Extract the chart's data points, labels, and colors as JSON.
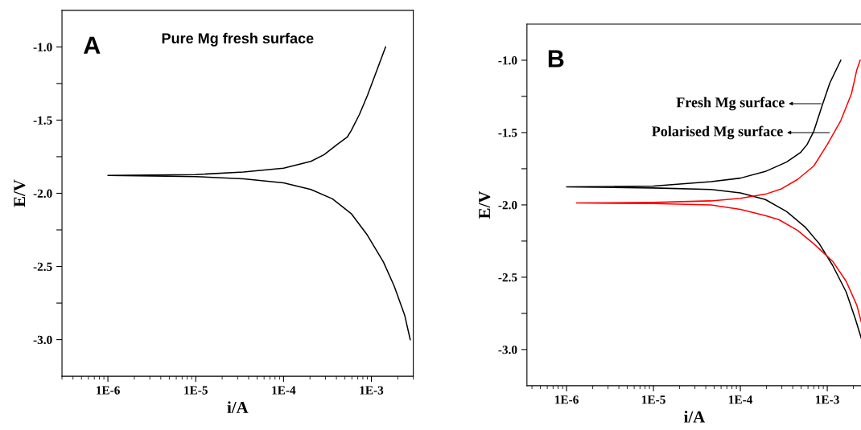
{
  "chart_data": [
    {
      "type": "line",
      "title": "A",
      "xlabel": "i/A",
      "ylabel": "E/V",
      "log": "x",
      "grid": false,
      "legend": false,
      "xlim": [
        3e-07,
        0.003
      ],
      "xticks": [
        {
          "value": 1e-06,
          "label": "1E-6"
        },
        {
          "value": 1e-05,
          "label": "1E-5"
        },
        {
          "value": 0.0001,
          "label": "1E-4"
        },
        {
          "value": 0.001,
          "label": "1E-3"
        }
      ],
      "ylim": [
        -3.25,
        -0.75
      ],
      "yticks": [
        {
          "value": -3.0,
          "label": "-3.0"
        },
        {
          "value": -2.75,
          "label": null
        },
        {
          "value": -2.5,
          "label": "-2.5"
        },
        {
          "value": -2.25,
          "label": null
        },
        {
          "value": -2.0,
          "label": "-2.0"
        },
        {
          "value": -1.75,
          "label": null
        },
        {
          "value": -1.5,
          "label": "-1.5"
        },
        {
          "value": -1.25,
          "label": null
        },
        {
          "value": -1.0,
          "label": "-1.0"
        }
      ],
      "annotations": [
        "Pure Mg fresh surface"
      ],
      "series": [
        {
          "color": "#000000",
          "x": [
            0.00145,
            0.00111,
            0.0009,
            0.00073,
            0.00059,
            0.00053,
            0.000415,
            0.00029,
            0.000205,
            0.0001,
            3.5e-05,
            1e-05,
            1e-06,
            1e-05,
            3.5e-05,
            0.0001,
            0.000205,
            0.00036,
            0.00059,
            0.0009,
            0.00137,
            0.00182,
            0.0024,
            0.00277
          ],
          "values": [
            -1.0,
            -1.187,
            -1.333,
            -1.462,
            -1.571,
            -1.617,
            -1.663,
            -1.736,
            -1.782,
            -1.828,
            -1.855,
            -1.872,
            -1.878,
            -1.886,
            -1.901,
            -1.929,
            -1.974,
            -2.038,
            -2.139,
            -2.286,
            -2.469,
            -2.634,
            -2.835,
            -3.0
          ]
        }
      ]
    },
    {
      "type": "line",
      "title": "B",
      "xlabel": "i/A",
      "ylabel": "E/V",
      "log": "x",
      "grid": false,
      "legend": false,
      "xlim": [
        3.5e-07,
        0.0025
      ],
      "xticks": [
        {
          "value": 1e-06,
          "label": "1E-6"
        },
        {
          "value": 1e-05,
          "label": "1E-5"
        },
        {
          "value": 0.0001,
          "label": "1E-4"
        },
        {
          "value": 0.001,
          "label": "1E-3"
        }
      ],
      "ylim": [
        -3.25,
        -0.75
      ],
      "yticks": [
        {
          "value": -3.0,
          "label": "-3.0"
        },
        {
          "value": -2.75,
          "label": null
        },
        {
          "value": -2.5,
          "label": "-2.5"
        },
        {
          "value": -2.25,
          "label": null
        },
        {
          "value": -2.0,
          "label": "-2.0"
        },
        {
          "value": -1.75,
          "label": null
        },
        {
          "value": -1.5,
          "label": "-1.5"
        },
        {
          "value": -1.25,
          "label": null
        },
        {
          "value": -1.0,
          "label": "-1.0"
        }
      ],
      "annotations": [
        "Fresh Mg surface",
        "Polarised Mg surface"
      ],
      "series": [
        {
          "color": "#000000",
          "x": [
            0.00143,
            0.00107,
            0.00087,
            0.0007,
            0.000585,
            0.00049,
            0.00034,
            0.000194,
            0.0001,
            4.6e-05,
            1e-05,
            1e-06,
            1e-05,
            4.6e-05,
            0.0001,
            0.000194,
            0.00034,
            0.000565,
            0.00081,
            0.00115,
            0.00165,
            0.0021,
            0.0025
          ],
          "values": [
            -1.0,
            -1.157,
            -1.315,
            -1.491,
            -1.583,
            -1.639,
            -1.704,
            -1.769,
            -1.815,
            -1.839,
            -1.87,
            -1.876,
            -1.883,
            -1.894,
            -1.917,
            -1.963,
            -2.046,
            -2.157,
            -2.269,
            -2.417,
            -2.602,
            -2.787,
            -2.935
          ]
        },
        {
          "color": "#ff0000",
          "x": [
            0.00239,
            0.00219,
            0.0019,
            0.00143,
            0.001,
            0.0007,
            0.000455,
            0.000297,
            0.000194,
            0.0001,
            4.6e-05,
            1e-05,
            1.3e-06,
            1e-05,
            4.6e-05,
            0.0001,
            0.000194,
            0.000277,
            0.000455,
            0.0007,
            0.00115,
            0.00165,
            0.00219,
            0.0025
          ],
          "values": [
            -1.0,
            -1.065,
            -1.231,
            -1.417,
            -1.583,
            -1.731,
            -1.824,
            -1.889,
            -1.926,
            -1.954,
            -1.972,
            -1.983,
            -1.987,
            -1.991,
            -2.0,
            -2.031,
            -2.074,
            -2.102,
            -2.176,
            -2.269,
            -2.389,
            -2.528,
            -2.694,
            -2.824
          ]
        }
      ]
    }
  ]
}
